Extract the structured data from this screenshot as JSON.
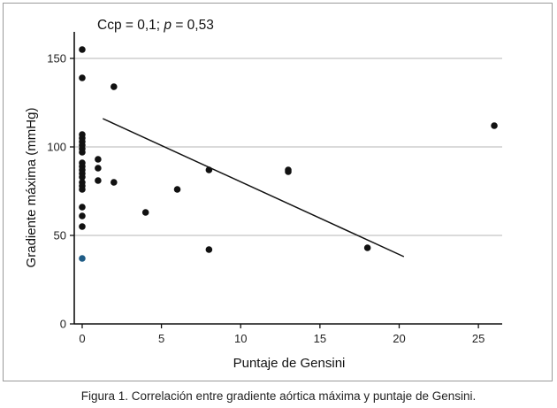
{
  "chart_data": {
    "type": "scatter",
    "annotation": "Ccp = 0,1; p = 0,53",
    "xlabel": "Puntaje de Gensini",
    "ylabel": "Gradiente máxima (mmHg)",
    "xlim": [
      -0.5,
      26.5
    ],
    "ylim": [
      0,
      165
    ],
    "xticks": [
      0,
      5,
      10,
      15,
      20,
      25
    ],
    "xtick_labels": [
      "0",
      "5",
      "10",
      "15",
      "20",
      "25"
    ],
    "yticks": [
      0,
      50,
      100,
      150
    ],
    "ytick_labels": [
      "0",
      "50",
      "100",
      "150"
    ],
    "grid": "horizontal",
    "points": [
      {
        "x": 0,
        "y": 155
      },
      {
        "x": 0,
        "y": 139
      },
      {
        "x": 0,
        "y": 107
      },
      {
        "x": 0,
        "y": 105
      },
      {
        "x": 0,
        "y": 103
      },
      {
        "x": 0,
        "y": 101
      },
      {
        "x": 0,
        "y": 99
      },
      {
        "x": 0,
        "y": 97
      },
      {
        "x": 0,
        "y": 91
      },
      {
        "x": 0,
        "y": 89
      },
      {
        "x": 0,
        "y": 87
      },
      {
        "x": 0,
        "y": 85
      },
      {
        "x": 0,
        "y": 83
      },
      {
        "x": 0,
        "y": 80
      },
      {
        "x": 0,
        "y": 78
      },
      {
        "x": 0,
        "y": 76
      },
      {
        "x": 0,
        "y": 66
      },
      {
        "x": 0,
        "y": 61
      },
      {
        "x": 0,
        "y": 55
      },
      {
        "x": 0,
        "y": 37,
        "color": "#1f5c86"
      },
      {
        "x": 1,
        "y": 93
      },
      {
        "x": 1,
        "y": 88
      },
      {
        "x": 1,
        "y": 81
      },
      {
        "x": 2,
        "y": 134
      },
      {
        "x": 2,
        "y": 80
      },
      {
        "x": 4,
        "y": 63
      },
      {
        "x": 6,
        "y": 76
      },
      {
        "x": 8,
        "y": 87
      },
      {
        "x": 8,
        "y": 42
      },
      {
        "x": 13,
        "y": 87
      },
      {
        "x": 13,
        "y": 86
      },
      {
        "x": 18,
        "y": 43
      },
      {
        "x": 26,
        "y": 112
      }
    ],
    "trendline": {
      "x": [
        1.3,
        20.3
      ],
      "y": [
        116,
        38
      ]
    },
    "point_color": "#111111",
    "line_color": "#111111",
    "grid_color": "#b5b5b5"
  },
  "caption": "Figura 1. Correlación entre gradiente aórtica máxima y puntaje de Gensini."
}
